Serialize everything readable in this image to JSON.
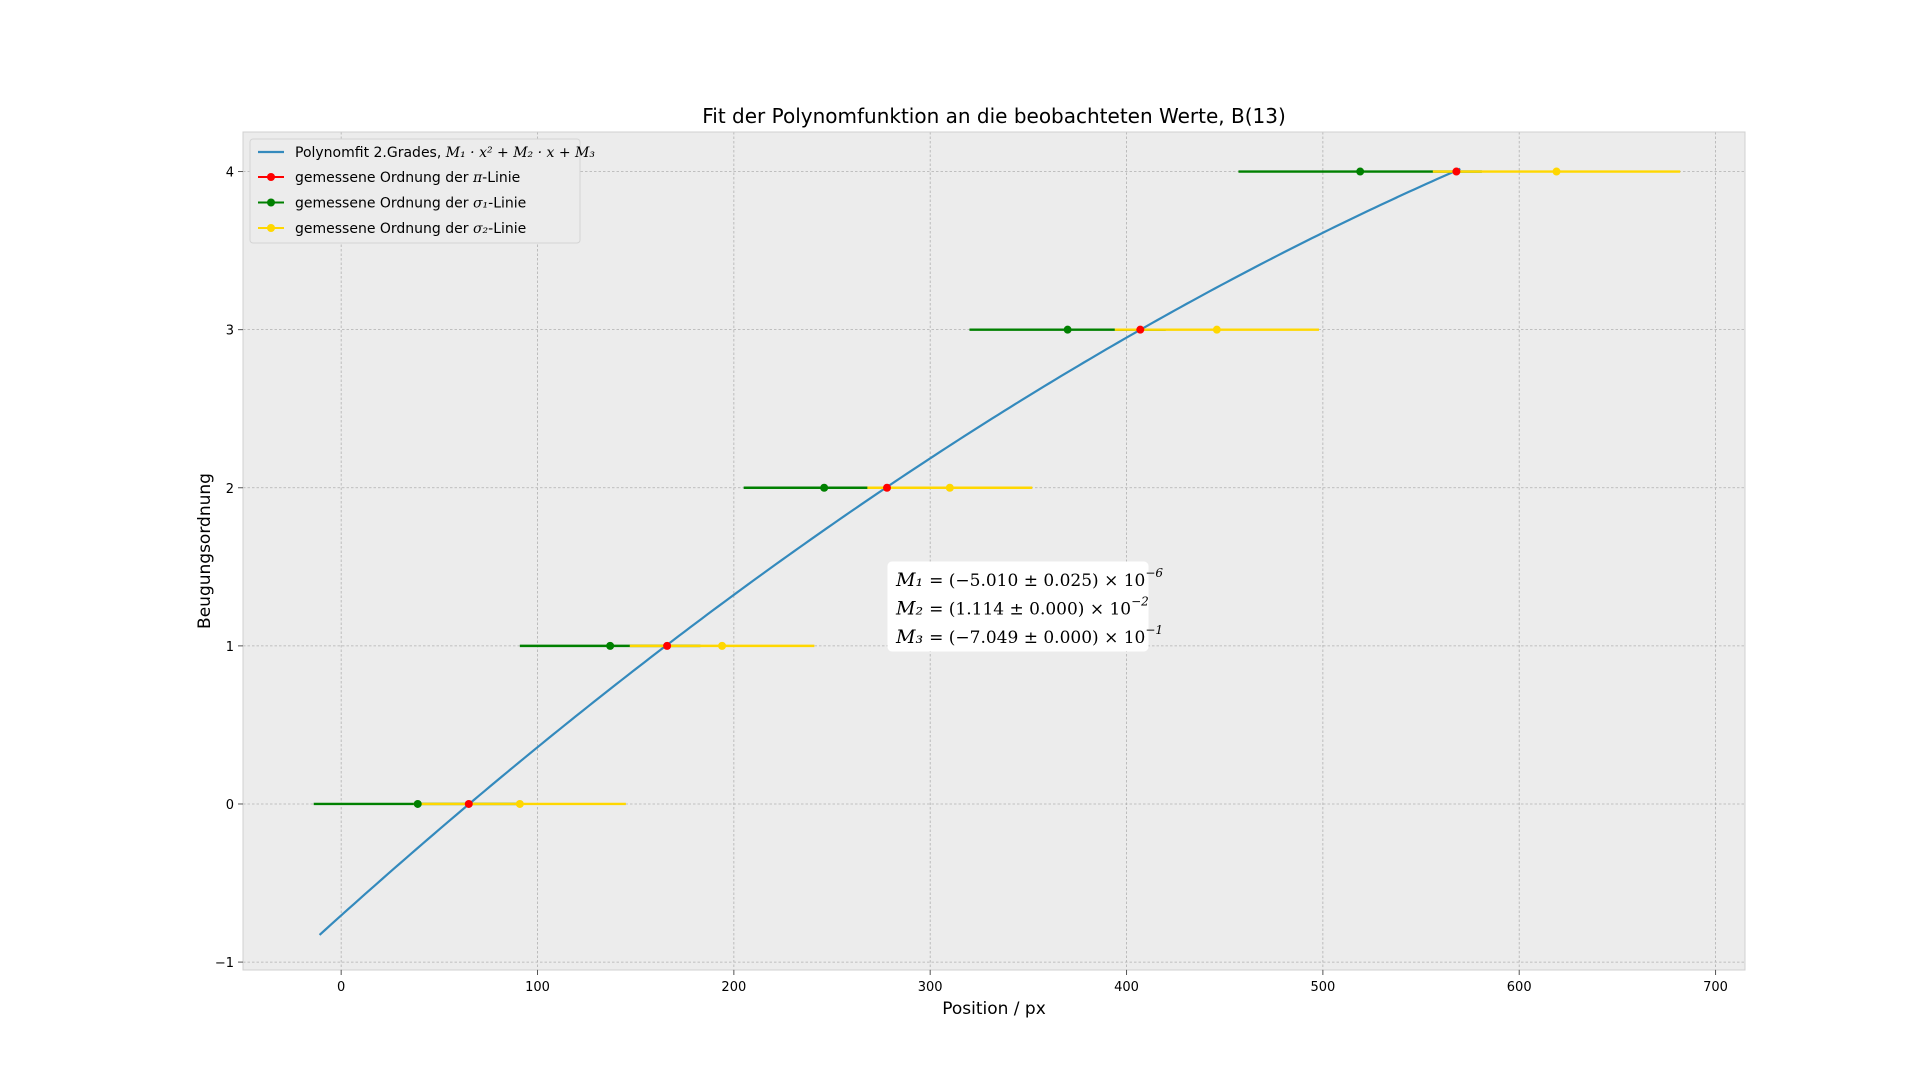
{
  "chart_data": {
    "type": "scatter",
    "title": "Fit der Polynomfunktion an die beobachteten Werte, B(13)",
    "xlabel": "Position / px",
    "ylabel": "Beugungsordnung",
    "xlim": [
      -50,
      715
    ],
    "ylim": [
      -1.05,
      4.25
    ],
    "xticks": [
      0,
      100,
      200,
      300,
      400,
      500,
      600,
      700
    ],
    "yticks": [
      -1,
      0,
      1,
      2,
      3,
      4
    ],
    "grid": true,
    "legend_position": "top-left",
    "fit": {
      "name": "Polynomfit 2.Grades, M₁·x² + M₂·x + M₃",
      "name_text": "Polynomfit 2.Grades, ",
      "name_formula": "M₁ · x² + M₂ · x + M₃",
      "color": "#348ABD",
      "x_range": [
        -11,
        570
      ],
      "coefficients": {
        "M1": -5.01e-06,
        "M2": 0.01114,
        "M3": -0.7049
      }
    },
    "series": [
      {
        "name": "gemessene Ordnung der π-Linie",
        "name_prefix": "gemessene Ordnung der ",
        "name_symbol": "π",
        "name_suffix": "-Linie",
        "color": "#ff0000",
        "points": [
          {
            "x": 65,
            "y": 0,
            "xerr": 0
          },
          {
            "x": 166,
            "y": 1,
            "xerr": 0
          },
          {
            "x": 278,
            "y": 2,
            "xerr": 0
          },
          {
            "x": 407,
            "y": 3,
            "xerr": 0
          },
          {
            "x": 568,
            "y": 4,
            "xerr": 0
          }
        ]
      },
      {
        "name": "gemessene Ordnung der σ₁-Linie",
        "name_prefix": "gemessene Ordnung der ",
        "name_symbol": "σ₁",
        "name_suffix": "-Linie",
        "color": "#008000",
        "points": [
          {
            "x": 39,
            "y": 0,
            "xerr": 53
          },
          {
            "x": 137,
            "y": 1,
            "xerr": 46
          },
          {
            "x": 246,
            "y": 2,
            "xerr": 41
          },
          {
            "x": 370,
            "y": 3,
            "xerr": 50
          },
          {
            "x": 519,
            "y": 4,
            "xerr": 62
          }
        ]
      },
      {
        "name": "gemessene Ordnung der σ₂-Linie",
        "name_prefix": "gemessene Ordnung der ",
        "name_symbol": "σ₂",
        "name_suffix": "-Linie",
        "color": "#ffd700",
        "points": [
          {
            "x": 91,
            "y": 0,
            "xerr": 54
          },
          {
            "x": 194,
            "y": 1,
            "xerr": 47
          },
          {
            "x": 310,
            "y": 2,
            "xerr": 42
          },
          {
            "x": 446,
            "y": 3,
            "xerr": 52
          },
          {
            "x": 619,
            "y": 4,
            "xerr": 63
          }
        ]
      }
    ],
    "annotation": {
      "lines": [
        {
          "label": "M₁",
          "value": "= (−5.010 ± 0.025) × 10",
          "exp": "−6"
        },
        {
          "label": "M₂",
          "value": "= (1.114 ± 0.000) × 10",
          "exp": "−2"
        },
        {
          "label": "M₃",
          "value": "= (−7.049 ± 0.000) × 10",
          "exp": "−1"
        }
      ]
    }
  }
}
